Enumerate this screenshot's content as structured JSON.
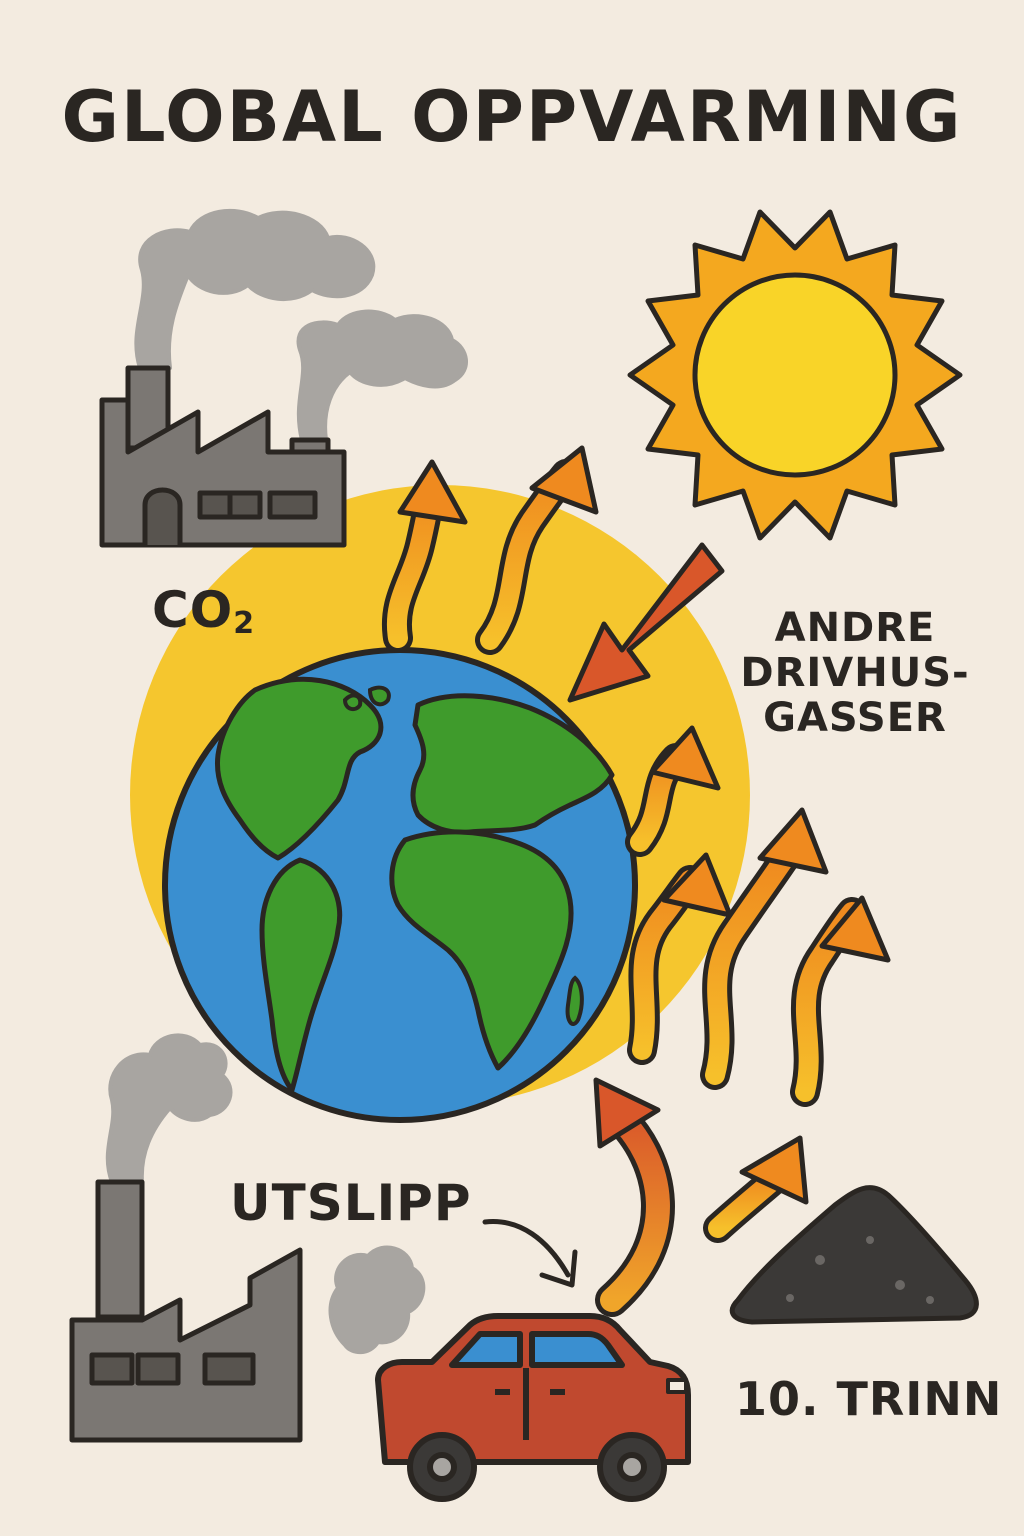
{
  "title": "GLOBAL OPPVARMING",
  "labels": {
    "co2_main": "CO",
    "co2_sub": "2",
    "other_gases": [
      "ANDRE",
      "DRIVHUS-",
      "GASSER"
    ],
    "emissions": "UTSLIPP",
    "grade": "10. TRINN"
  },
  "icons": [
    "factory-icon",
    "smoke-icon",
    "sun-icon",
    "earth-icon",
    "car-icon",
    "coal-pile-icon",
    "heat-arrow-icon"
  ],
  "colors": {
    "background": "#f3ebe0",
    "ink": "#2a2622",
    "sun": "#f6c52a",
    "halo": "#f5c62e",
    "ocean": "#3a8fd0",
    "land": "#3f9b2c",
    "incoming_ray": "#d9572a",
    "heat_arrow": "#f2a223",
    "factory": "#7b7773",
    "smoke": "#a8a5a1",
    "car": "#c0492f",
    "coal": "#3b3937"
  }
}
